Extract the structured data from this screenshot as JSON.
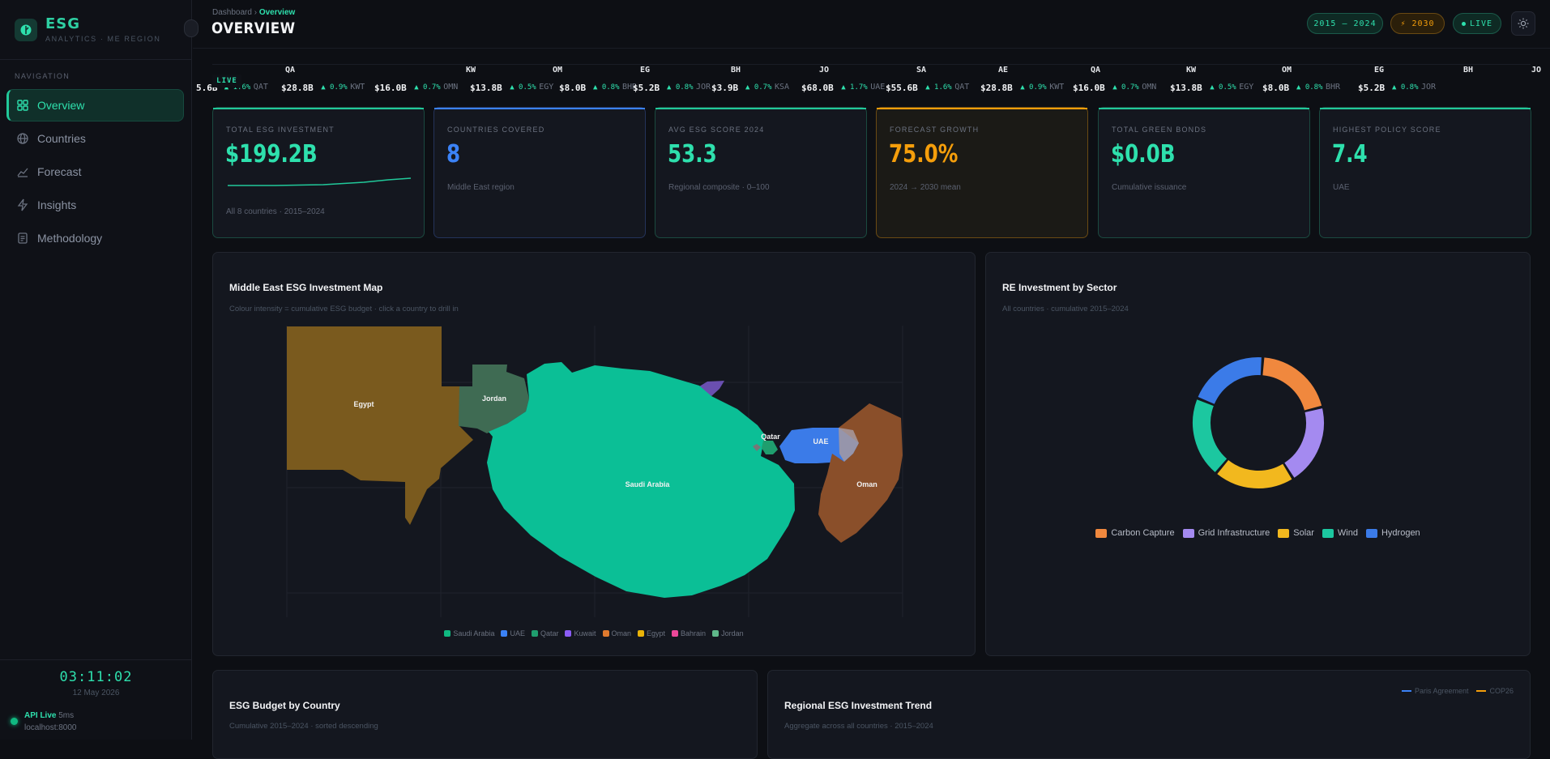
{
  "brand": {
    "title": "ESG",
    "subtitle": "ANALYTICS · ME REGION"
  },
  "nav": {
    "heading": "NAVIGATION",
    "items": [
      {
        "label": "Overview",
        "icon": "grid-icon",
        "active": true
      },
      {
        "label": "Countries",
        "icon": "globe-icon",
        "active": false
      },
      {
        "label": "Forecast",
        "icon": "trend-icon",
        "active": false
      },
      {
        "label": "Insights",
        "icon": "bolt-icon",
        "active": false
      },
      {
        "label": "Methodology",
        "icon": "document-icon",
        "active": false
      }
    ]
  },
  "footer": {
    "clock": "03:11:02",
    "date": "12 May 2026",
    "api_label": "API Live",
    "api_ms": "5ms",
    "host": "localhost:8000"
  },
  "header": {
    "breadcrumb_root": "Dashboard",
    "breadcrumb_sep": "›",
    "breadcrumb_current": "Overview",
    "title": "OVERVIEW",
    "years_pill": "2015 – 2024",
    "target_pill": "⚡ 2030",
    "live_pill": "LIVE"
  },
  "ticker": {
    "live_label": "LIVE",
    "items": [
      {
        "code": "QA",
        "value": "5.6B",
        "change": "▲ 1.6%",
        "iso": "QAT"
      },
      {
        "code": "",
        "value": "$28.8B",
        "change": "▲ 0.9%",
        "iso": "KWT"
      },
      {
        "code": "KW",
        "value": "$16.0B",
        "change": "▲ 0.7%",
        "iso": "OMN"
      },
      {
        "code": "OM",
        "value": "$13.8B",
        "change": "▲ 0.5%",
        "iso": "EGY"
      },
      {
        "code": "EG",
        "value": "$8.0B",
        "change": "▲ 0.8%",
        "iso": "BHR"
      },
      {
        "code": "BH",
        "value": "$5.2B",
        "change": "▲ 0.8%",
        "iso": "JOR"
      },
      {
        "code": "JO",
        "value": "$3.9B",
        "change": "▲ 0.7%",
        "iso": "KSA"
      },
      {
        "code": "SA",
        "value": "$68.0B",
        "change": "▲ 1.7%",
        "iso": "UAE"
      },
      {
        "code": "AE",
        "value": "$55.6B",
        "change": "▲ 1.6%",
        "iso": "QAT"
      },
      {
        "code": "QA",
        "value": "$28.8B",
        "change": "▲ 0.9%",
        "iso": "KWT"
      },
      {
        "code": "KW",
        "value": "$16.0B",
        "change": "▲ 0.7%",
        "iso": "OMN"
      },
      {
        "code": "OM",
        "value": "$13.8B",
        "change": "▲ 0.5%",
        "iso": "EGY"
      },
      {
        "code": "EG",
        "value": "$8.0B",
        "change": "▲ 0.8%",
        "iso": "BHR"
      },
      {
        "code": "BH",
        "value": "$5.2B",
        "change": "▲ 0.8%",
        "iso": "JOR"
      },
      {
        "code": "JO",
        "value": "",
        "change": "",
        "iso": ""
      }
    ]
  },
  "kpis": [
    {
      "label": "TOTAL ESG INVESTMENT",
      "value": "$199.2B",
      "sub": "All 8 countries · 2015–2024",
      "color": "#2ee0ad",
      "variant": "green"
    },
    {
      "label": "COUNTRIES COVERED",
      "value": "8",
      "sub": "Middle East region",
      "color": "#3b82f6",
      "variant": "blue"
    },
    {
      "label": "AVG ESG SCORE 2024",
      "value": "53.3",
      "sub": "Regional composite · 0–100",
      "color": "#2ee0ad",
      "variant": "green"
    },
    {
      "label": "FORECAST GROWTH",
      "value": "75.0%",
      "sub": "2024 → 2030 mean",
      "color": "#f59e0b",
      "variant": "amber"
    },
    {
      "label": "TOTAL GREEN BONDS",
      "value": "$0.0B",
      "sub": "Cumulative issuance",
      "color": "#2ee0ad",
      "variant": "green"
    },
    {
      "label": "HIGHEST POLICY SCORE",
      "value": "7.4",
      "sub": "UAE",
      "color": "#2ee0ad",
      "variant": "green"
    }
  ],
  "map_panel": {
    "title": "Middle East ESG Investment Map",
    "subtitle": "Colour intensity = cumulative ESG budget · click a country to drill in",
    "labels": {
      "egypt": "Egypt",
      "jordan": "Jordan",
      "saudi": "Saudi Arabia",
      "qatar": "Qatar",
      "uae": "UAE",
      "oman": "Oman"
    },
    "legend": [
      {
        "name": "Saudi Arabia",
        "color": "#10b981"
      },
      {
        "name": "UAE",
        "color": "#3b82f6"
      },
      {
        "name": "Qatar",
        "color": "#1f9e6e"
      },
      {
        "name": "Kuwait",
        "color": "#8b5cf6"
      },
      {
        "name": "Oman",
        "color": "#e07a2e"
      },
      {
        "name": "Egypt",
        "color": "#eab308"
      },
      {
        "name": "Bahrain",
        "color": "#ec4899"
      },
      {
        "name": "Jordan",
        "color": "#5fb88a"
      }
    ]
  },
  "sector_panel": {
    "title": "RE Investment by Sector",
    "subtitle": "All countries · cumulative 2015–2024"
  },
  "chart_data": {
    "type": "pie",
    "donut": true,
    "categories": [
      "Carbon Capture",
      "Grid Infrastructure",
      "Solar",
      "Wind",
      "Hydrogen"
    ],
    "values": [
      20,
      20,
      20,
      20,
      20
    ],
    "colors": [
      "#f0883e",
      "#a48af0",
      "#f2b81e",
      "#1cc7a0",
      "#3b7be8"
    ],
    "legend_position": "bottom"
  },
  "budget_panel": {
    "title": "ESG Budget by Country",
    "subtitle": "Cumulative 2015–2024 · sorted descending"
  },
  "trend_panel": {
    "title": "Regional ESG Investment Trend",
    "subtitle": "Aggregate across all countries · 2015–2024",
    "legend": [
      {
        "name": "Paris Agreement",
        "color": "#3b82f6"
      },
      {
        "name": "COP26",
        "color": "#f59e0b"
      }
    ]
  }
}
